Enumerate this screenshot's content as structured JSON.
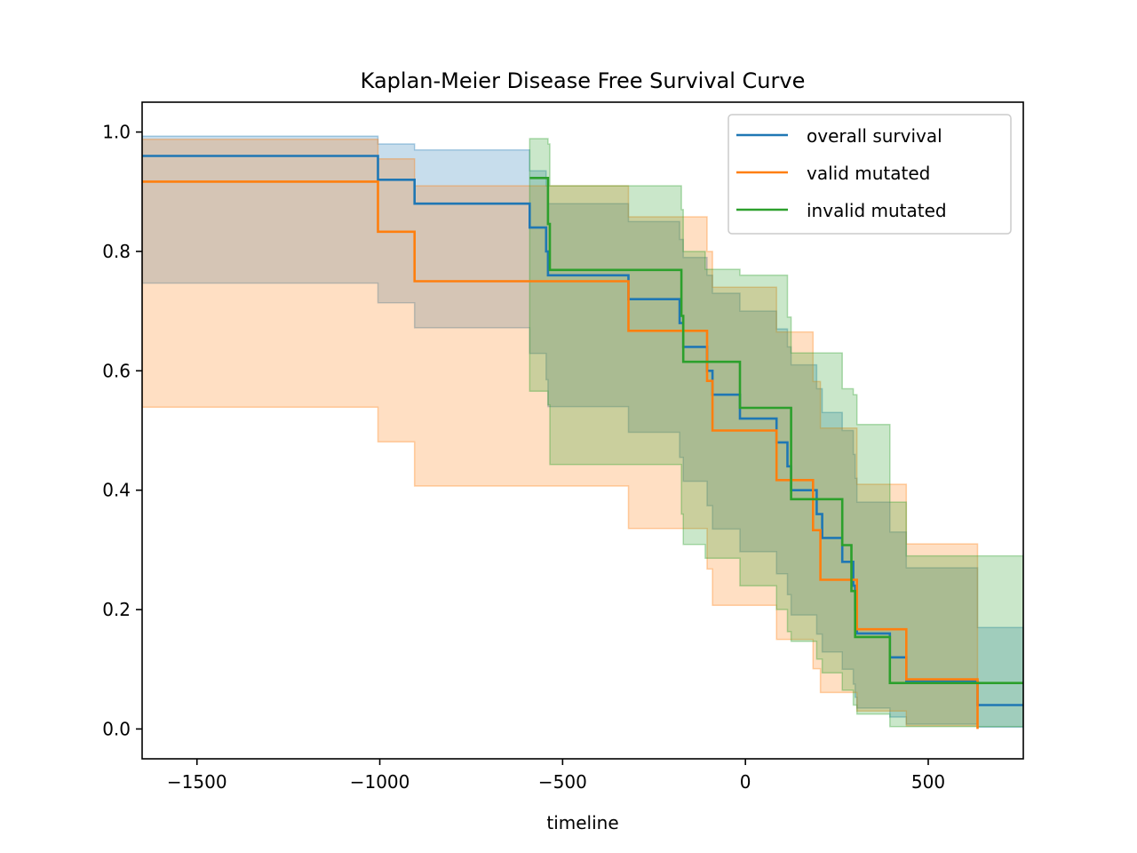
{
  "chart_data": {
    "type": "line",
    "title": "Kaplan-Meier Disease Free Survival Curve",
    "xlabel": "timeline",
    "ylabel": "",
    "xlim": [
      -1650,
      760
    ],
    "ylim": [
      -0.05,
      1.05
    ],
    "xticks": [
      -1500,
      -1000,
      -500,
      0,
      500
    ],
    "xtick_labels": [
      "−1500",
      "−1000",
      "−500",
      "0",
      "500"
    ],
    "yticks": [
      0.0,
      0.2,
      0.4,
      0.6,
      0.8,
      1.0
    ],
    "ytick_labels": [
      "0.0",
      "0.2",
      "0.4",
      "0.6",
      "0.8",
      "1.0"
    ],
    "grid": false,
    "legend_position": "top-right",
    "series": [
      {
        "name": "overall survival",
        "color": "#1f77b4",
        "steps": [
          [
            -1650,
            0.96
          ],
          [
            -1005,
            0.92
          ],
          [
            -905,
            0.88
          ],
          [
            -590,
            0.84
          ],
          [
            -545,
            0.8
          ],
          [
            -540,
            0.76
          ],
          [
            -320,
            0.72
          ],
          [
            -180,
            0.68
          ],
          [
            -170,
            0.64
          ],
          [
            -105,
            0.6
          ],
          [
            -90,
            0.56
          ],
          [
            -15,
            0.52
          ],
          [
            85,
            0.48
          ],
          [
            115,
            0.44
          ],
          [
            125,
            0.4
          ],
          [
            195,
            0.36
          ],
          [
            210,
            0.32
          ],
          [
            265,
            0.28
          ],
          [
            295,
            0.24
          ],
          [
            300,
            0.2
          ],
          [
            305,
            0.16
          ],
          [
            395,
            0.12
          ],
          [
            440,
            0.08
          ],
          [
            635,
            0.04
          ]
        ],
        "x_end": 760,
        "ci": [
          [
            -1650,
            0.747,
            0.993
          ],
          [
            -1005,
            0.714,
            0.98
          ],
          [
            -905,
            0.672,
            0.97
          ],
          [
            -590,
            0.629,
            0.935
          ],
          [
            -545,
            0.585,
            0.91
          ],
          [
            -540,
            0.54,
            0.88
          ],
          [
            -320,
            0.497,
            0.85
          ],
          [
            -180,
            0.455,
            0.82
          ],
          [
            -170,
            0.415,
            0.79
          ],
          [
            -105,
            0.374,
            0.76
          ],
          [
            -90,
            0.335,
            0.73
          ],
          [
            -15,
            0.297,
            0.7
          ],
          [
            85,
            0.26,
            0.67
          ],
          [
            115,
            0.225,
            0.64
          ],
          [
            125,
            0.191,
            0.61
          ],
          [
            195,
            0.159,
            0.57
          ],
          [
            210,
            0.129,
            0.53
          ],
          [
            265,
            0.1,
            0.5
          ],
          [
            295,
            0.075,
            0.46
          ],
          [
            300,
            0.053,
            0.42
          ],
          [
            305,
            0.035,
            0.38
          ],
          [
            395,
            0.02,
            0.33
          ],
          [
            440,
            0.008,
            0.27
          ],
          [
            635,
            0.003,
            0.17
          ]
        ]
      },
      {
        "name": "valid mutated",
        "color": "#ff7f0e",
        "steps": [
          [
            -1650,
            0.917
          ],
          [
            -1005,
            0.833
          ],
          [
            -905,
            0.75
          ],
          [
            -320,
            0.667
          ],
          [
            -105,
            0.583
          ],
          [
            -90,
            0.5
          ],
          [
            85,
            0.417
          ],
          [
            185,
            0.333
          ],
          [
            205,
            0.25
          ],
          [
            305,
            0.167
          ],
          [
            440,
            0.083
          ],
          [
            635,
            0.0
          ]
        ],
        "x_end": 635,
        "ci": [
          [
            -1650,
            0.539,
            0.988
          ],
          [
            -1005,
            0.481,
            0.955
          ],
          [
            -905,
            0.407,
            0.91
          ],
          [
            -320,
            0.336,
            0.858
          ],
          [
            -105,
            0.268,
            0.8
          ],
          [
            -90,
            0.207,
            0.74
          ],
          [
            85,
            0.15,
            0.665
          ],
          [
            185,
            0.101,
            0.582
          ],
          [
            205,
            0.061,
            0.504
          ],
          [
            305,
            0.03,
            0.41
          ],
          [
            440,
            0.005,
            0.31
          ]
        ]
      },
      {
        "name": "invalid mutated",
        "color": "#2ca02c",
        "steps": [
          [
            -590,
            0.923
          ],
          [
            -540,
            0.846
          ],
          [
            -535,
            0.769
          ],
          [
            -175,
            0.692
          ],
          [
            -170,
            0.615
          ],
          [
            -15,
            0.538
          ],
          [
            125,
            0.385
          ],
          [
            265,
            0.308
          ],
          [
            290,
            0.231
          ],
          [
            300,
            0.154
          ],
          [
            395,
            0.077
          ]
        ],
        "x_end": 760,
        "ci": [
          [
            -590,
            0.566,
            0.989
          ],
          [
            -540,
            0.543,
            0.98
          ],
          [
            -535,
            0.443,
            0.91
          ],
          [
            -175,
            0.36,
            0.87
          ],
          [
            -170,
            0.309,
            0.8
          ],
          [
            -110,
            0.286,
            0.77
          ],
          [
            -15,
            0.24,
            0.76
          ],
          [
            85,
            0.2,
            0.76
          ],
          [
            115,
            0.163,
            0.69
          ],
          [
            125,
            0.147,
            0.63
          ],
          [
            195,
            0.117,
            0.63
          ],
          [
            210,
            0.094,
            0.63
          ],
          [
            265,
            0.065,
            0.57
          ],
          [
            295,
            0.04,
            0.56
          ],
          [
            305,
            0.025,
            0.51
          ],
          [
            395,
            0.004,
            0.38
          ],
          [
            440,
            0.004,
            0.29
          ]
        ]
      }
    ]
  }
}
